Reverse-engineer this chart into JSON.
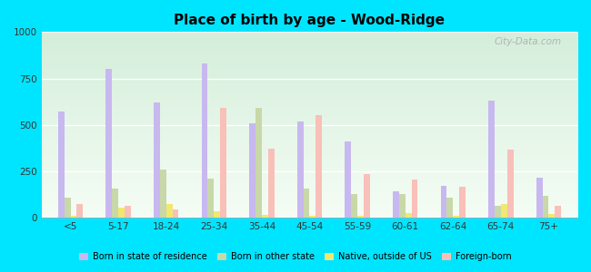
{
  "title": "Place of birth by age - Wood-Ridge",
  "categories": [
    "<5",
    "5-17",
    "18-24",
    "25-34",
    "35-44",
    "45-54",
    "55-59",
    "60-61",
    "62-64",
    "65-74",
    "75+"
  ],
  "series": {
    "Born in state of residence": [
      570,
      800,
      620,
      830,
      510,
      520,
      410,
      140,
      170,
      630,
      215
    ],
    "Born in other state": [
      110,
      155,
      260,
      210,
      590,
      155,
      130,
      130,
      110,
      65,
      120
    ],
    "Native, outside of US": [
      10,
      55,
      75,
      35,
      15,
      10,
      10,
      25,
      10,
      75,
      20
    ],
    "Foreign-born": [
      75,
      65,
      45,
      590,
      370,
      550,
      235,
      205,
      165,
      365,
      65
    ]
  },
  "colors": {
    "Born in state of residence": "#c8b8f0",
    "Born in other state": "#c8d8a8",
    "Native, outside of US": "#f0e870",
    "Foreign-born": "#f8c0b8"
  },
  "ylim": [
    0,
    1000
  ],
  "yticks": [
    0,
    250,
    500,
    750,
    1000
  ],
  "figure_bg": "#00e5ff",
  "watermark": "City-Data.com",
  "bar_width": 0.13,
  "title_fontsize": 11
}
